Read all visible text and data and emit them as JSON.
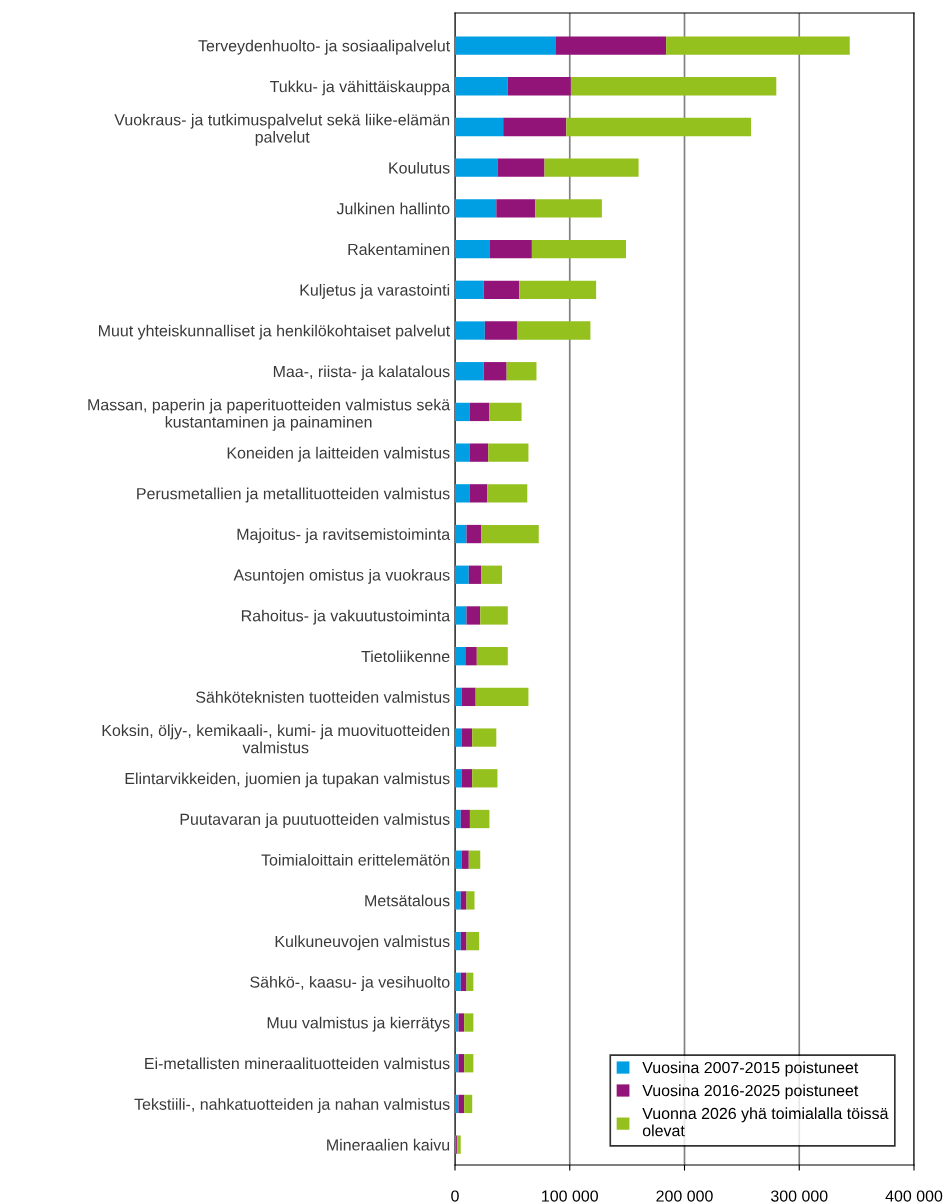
{
  "chart_data": {
    "type": "bar",
    "orientation": "horizontal",
    "stacked": true,
    "categories": [
      "Terveydenhuolto- ja sosiaalipalvelut",
      "Tukku- ja vähittäiskauppa",
      "Vuokraus- ja tutkimuspalvelut sekä liike-elämän\npalvelut",
      "Koulutus",
      "Julkinen hallinto",
      "Rakentaminen",
      "Kuljetus ja varastointi",
      "Muut yhteiskunnalliset ja henkilökohtaiset palvelut",
      "Maa-, riista- ja kalatalous",
      "Massan, paperin ja paperituotteiden valmistus sekä\nkustantaminen ja painaminen",
      "Koneiden ja laitteiden valmistus",
      "Perusmetallien ja metallituotteiden valmistus",
      "Majoitus- ja ravitsemistoiminta",
      "Asuntojen omistus ja vuokraus",
      "Rahoitus- ja vakuutustoiminta",
      "Tietoliikenne",
      "Sähköteknisten tuotteiden valmistus",
      "Koksin, öljy-, kemikaali-, kumi- ja muovituotteiden\nvalmistus",
      "Elintarvikkeiden, juomien ja tupakan valmistus",
      "Puutavaran ja puutuotteiden valmistus",
      "Toimialoittain erittelemätön",
      "Metsätalous",
      "Kulkuneuvojen valmistus",
      "Sähkö-, kaasu- ja vesihuolto",
      "Muu valmistus ja kierrätys",
      "Ei-metallisten mineraalituotteiden valmistus",
      "Tekstiili-, nahkatuotteiden ja nahan valmistus",
      "Mineraalien kaivu"
    ],
    "series": [
      {
        "name": "Vuosina 2007-2015 poistuneet",
        "color": "#009fe3",
        "values": [
          88000,
          46000,
          42000,
          37000,
          36000,
          30000,
          25000,
          26000,
          25000,
          13000,
          13000,
          13000,
          10000,
          12000,
          10000,
          9000,
          6000,
          6000,
          6000,
          5000,
          6000,
          5000,
          5000,
          5000,
          3000,
          3000,
          3000,
          1000
        ]
      },
      {
        "name": "Vuosina 2016-2025 poistuneet",
        "color": "#931478",
        "values": [
          96000,
          55000,
          55000,
          41000,
          34000,
          37000,
          31000,
          28000,
          20000,
          17000,
          16000,
          15000,
          13000,
          11000,
          12000,
          10000,
          12000,
          9000,
          9000,
          8000,
          6000,
          5000,
          5000,
          5000,
          5000,
          5000,
          5000,
          1000
        ]
      },
      {
        "name": "Vuonna 2026 yhä toimialalla töissä\nolevat",
        "color": "#95c11f",
        "values": [
          160000,
          179000,
          161000,
          82000,
          58000,
          82000,
          67000,
          64000,
          26000,
          28000,
          35000,
          35000,
          50000,
          18000,
          24000,
          27000,
          46000,
          21000,
          22000,
          17000,
          10000,
          7000,
          11000,
          6000,
          8000,
          8000,
          7000,
          3000
        ]
      }
    ],
    "xlim": [
      0,
      400000
    ],
    "xticks": [
      0,
      {
        "value": 100000,
        "label": "100 000"
      },
      {
        "value": 200000,
        "label": "200 000"
      },
      {
        "value": 300000,
        "label": "300 000"
      },
      {
        "value": 400000,
        "label": "400 000"
      }
    ],
    "grid": "x",
    "legend": "bottom right"
  }
}
